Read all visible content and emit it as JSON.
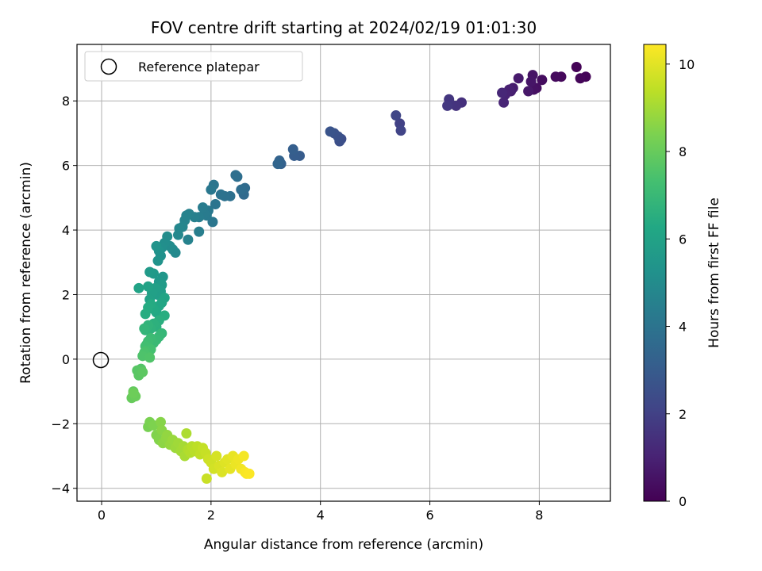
{
  "chart_data": {
    "type": "scatter",
    "title": "FOV centre drift starting at 2024/02/19 01:01:30",
    "xlabel": "Angular distance from reference (arcmin)",
    "ylabel": "Rotation from reference (arcmin)",
    "xlim": [
      -0.45,
      9.3
    ],
    "ylim": [
      -4.4,
      9.75
    ],
    "x_ticks": [
      0,
      2,
      4,
      6,
      8
    ],
    "y_ticks": [
      -4,
      -2,
      0,
      2,
      4,
      6,
      8
    ],
    "x_tick_labels": [
      "0",
      "2",
      "4",
      "6",
      "8"
    ],
    "y_tick_labels": [
      "−4",
      "−2",
      "0",
      "2",
      "4",
      "6",
      "8"
    ],
    "grid": true,
    "legend": {
      "position": "top-left",
      "entries": [
        "Reference platepar"
      ]
    },
    "reference_point": {
      "label": "Reference platepar",
      "x": 0,
      "y": 0,
      "marker": "open-circle"
    },
    "colorbar": {
      "label": "Hours from first FF file",
      "range": [
        0,
        10.45
      ],
      "ticks": [
        0,
        2,
        4,
        6,
        8,
        10
      ],
      "tick_labels": [
        "0",
        "2",
        "4",
        "6",
        "8",
        "10"
      ],
      "colormap": "viridis"
    },
    "series": [
      {
        "color_variable": "hours",
        "points": [
          [
            8.68,
            9.05,
            0.05
          ],
          [
            8.85,
            8.75,
            0.1
          ],
          [
            8.75,
            8.7,
            0.15
          ],
          [
            8.4,
            8.75,
            0.22
          ],
          [
            8.3,
            8.75,
            0.28
          ],
          [
            8.05,
            8.65,
            0.35
          ],
          [
            7.95,
            8.4,
            0.42
          ],
          [
            7.9,
            8.35,
            0.48
          ],
          [
            7.88,
            8.8,
            0.55
          ],
          [
            7.85,
            8.6,
            0.6
          ],
          [
            7.8,
            8.3,
            0.68
          ],
          [
            7.62,
            8.7,
            0.75
          ],
          [
            7.52,
            8.4,
            0.82
          ],
          [
            7.48,
            8.3,
            0.9
          ],
          [
            7.45,
            8.35,
            0.96
          ],
          [
            7.38,
            8.2,
            1.02
          ],
          [
            7.35,
            7.95,
            1.08
          ],
          [
            7.32,
            8.25,
            1.15
          ],
          [
            6.58,
            7.95,
            1.45
          ],
          [
            6.48,
            7.85,
            1.52
          ],
          [
            6.38,
            7.9,
            1.58
          ],
          [
            6.35,
            8.05,
            1.64
          ],
          [
            6.32,
            7.85,
            1.7
          ],
          [
            5.45,
            7.3,
            2.0
          ],
          [
            5.47,
            7.08,
            2.08
          ],
          [
            5.38,
            7.55,
            2.15
          ],
          [
            4.38,
            6.82,
            2.45
          ],
          [
            4.35,
            6.75,
            2.52
          ],
          [
            4.32,
            6.9,
            2.58
          ],
          [
            4.25,
            7.0,
            2.64
          ],
          [
            4.18,
            7.05,
            2.7
          ],
          [
            3.62,
            6.3,
            3.0
          ],
          [
            3.52,
            6.3,
            3.07
          ],
          [
            3.5,
            6.5,
            3.14
          ],
          [
            3.28,
            6.05,
            3.22
          ],
          [
            3.25,
            6.15,
            3.3
          ],
          [
            3.22,
            6.05,
            3.38
          ],
          [
            2.6,
            5.1,
            3.6
          ],
          [
            2.62,
            5.3,
            3.65
          ],
          [
            2.55,
            5.25,
            3.7
          ],
          [
            2.48,
            5.65,
            3.75
          ],
          [
            2.45,
            5.7,
            3.8
          ],
          [
            2.35,
            5.05,
            3.85
          ],
          [
            2.25,
            5.05,
            3.9
          ],
          [
            2.18,
            5.1,
            3.95
          ],
          [
            2.08,
            4.8,
            4.0
          ],
          [
            2.05,
            5.4,
            4.05
          ],
          [
            2.03,
            4.25,
            4.1
          ],
          [
            2.0,
            5.25,
            4.15
          ],
          [
            1.95,
            4.6,
            4.2
          ],
          [
            1.92,
            4.45,
            4.25
          ],
          [
            1.88,
            4.5,
            4.3
          ],
          [
            1.85,
            4.7,
            4.35
          ],
          [
            1.78,
            4.4,
            4.4
          ],
          [
            1.78,
            3.95,
            4.45
          ],
          [
            1.7,
            4.4,
            4.5
          ],
          [
            1.6,
            4.5,
            4.55
          ],
          [
            1.58,
            3.7,
            4.6
          ],
          [
            1.55,
            4.45,
            4.65
          ],
          [
            1.52,
            4.3,
            4.7
          ],
          [
            1.48,
            4.1,
            4.75
          ],
          [
            1.42,
            4.05,
            4.8
          ],
          [
            1.4,
            3.85,
            4.85
          ],
          [
            1.35,
            3.3,
            4.9
          ],
          [
            1.3,
            3.4,
            4.95
          ],
          [
            1.25,
            3.5,
            5.0
          ],
          [
            1.2,
            3.8,
            5.05
          ],
          [
            1.15,
            3.6,
            5.1
          ],
          [
            1.1,
            3.45,
            5.15
          ],
          [
            1.08,
            3.2,
            5.2
          ],
          [
            1.05,
            3.35,
            5.25
          ],
          [
            1.03,
            3.05,
            5.3
          ],
          [
            1.0,
            3.5,
            5.35
          ],
          [
            1.12,
            2.55,
            5.5
          ],
          [
            1.05,
            2.4,
            5.55
          ],
          [
            0.95,
            2.65,
            5.6
          ],
          [
            0.88,
            2.7,
            5.65
          ],
          [
            1.1,
            2.3,
            5.7
          ],
          [
            1.08,
            2.1,
            5.75
          ],
          [
            1.02,
            2.0,
            5.8
          ],
          [
            0.98,
            2.2,
            5.85
          ],
          [
            0.92,
            2.05,
            5.9
          ],
          [
            0.88,
            1.85,
            5.95
          ],
          [
            0.85,
            2.25,
            6.0
          ],
          [
            0.68,
            2.2,
            6.05
          ],
          [
            1.15,
            1.9,
            6.1
          ],
          [
            1.1,
            1.75,
            6.15
          ],
          [
            1.05,
            1.65,
            6.2
          ],
          [
            1.0,
            1.45,
            6.25
          ],
          [
            0.95,
            1.55,
            6.3
          ],
          [
            0.9,
            1.7,
            6.35
          ],
          [
            0.85,
            1.6,
            6.4
          ],
          [
            0.8,
            1.4,
            6.45
          ],
          [
            1.15,
            1.35,
            6.5
          ],
          [
            1.05,
            1.2,
            6.55
          ],
          [
            1.0,
            1.0,
            6.6
          ],
          [
            0.95,
            1.1,
            6.65
          ],
          [
            0.9,
            0.95,
            6.7
          ],
          [
            0.85,
            1.05,
            6.75
          ],
          [
            0.8,
            0.9,
            6.8
          ],
          [
            0.78,
            0.95,
            6.85
          ],
          [
            1.1,
            0.8,
            6.9
          ],
          [
            1.05,
            0.7,
            6.95
          ],
          [
            1.0,
            0.6,
            7.0
          ],
          [
            0.95,
            0.5,
            7.05
          ],
          [
            0.9,
            0.65,
            7.1
          ],
          [
            0.85,
            0.55,
            7.15
          ],
          [
            0.82,
            0.45,
            7.2
          ],
          [
            0.8,
            0.4,
            7.25
          ],
          [
            0.9,
            0.3,
            7.3
          ],
          [
            0.85,
            0.15,
            7.35
          ],
          [
            0.8,
            0.25,
            7.4
          ],
          [
            0.78,
            0.2,
            7.45
          ],
          [
            0.75,
            0.1,
            7.5
          ],
          [
            0.88,
            0.05,
            7.55
          ],
          [
            0.72,
            -0.3,
            7.6
          ],
          [
            0.7,
            -0.4,
            7.65
          ],
          [
            0.65,
            -0.35,
            7.7
          ],
          [
            0.68,
            -0.5,
            7.75
          ],
          [
            0.75,
            -0.4,
            7.8
          ],
          [
            0.58,
            -1.0,
            7.9
          ],
          [
            0.6,
            -1.1,
            7.95
          ],
          [
            0.55,
            -1.2,
            8.0
          ],
          [
            0.62,
            -1.15,
            8.05
          ],
          [
            0.58,
            -1.05,
            8.1
          ],
          [
            0.85,
            -2.1,
            8.3
          ],
          [
            0.88,
            -1.95,
            8.35
          ],
          [
            0.95,
            -2.05,
            8.4
          ],
          [
            1.0,
            -2.35,
            8.45
          ],
          [
            1.05,
            -2.5,
            8.5
          ],
          [
            1.08,
            -1.95,
            8.55
          ],
          [
            1.1,
            -2.2,
            8.6
          ],
          [
            1.12,
            -2.6,
            8.65
          ],
          [
            1.18,
            -2.45,
            8.7
          ],
          [
            1.2,
            -2.35,
            8.75
          ],
          [
            1.25,
            -2.65,
            8.8
          ],
          [
            1.3,
            -2.5,
            8.85
          ],
          [
            1.35,
            -2.75,
            8.9
          ],
          [
            1.4,
            -2.6,
            8.95
          ],
          [
            1.45,
            -2.85,
            9.0
          ],
          [
            1.5,
            -2.7,
            9.05
          ],
          [
            1.52,
            -3.0,
            9.1
          ],
          [
            1.55,
            -2.3,
            9.15
          ],
          [
            1.58,
            -2.8,
            9.2
          ],
          [
            1.62,
            -2.9,
            9.25
          ],
          [
            1.65,
            -2.7,
            9.3
          ],
          [
            1.7,
            -2.85,
            9.35
          ],
          [
            1.75,
            -2.7,
            9.4
          ],
          [
            1.8,
            -2.95,
            9.45
          ],
          [
            1.85,
            -2.75,
            9.5
          ],
          [
            1.9,
            -2.9,
            9.55
          ],
          [
            1.92,
            -3.7,
            9.6
          ],
          [
            1.95,
            -3.1,
            9.65
          ],
          [
            2.0,
            -3.2,
            9.7
          ],
          [
            2.05,
            -3.4,
            9.75
          ],
          [
            2.1,
            -3.0,
            9.8
          ],
          [
            2.15,
            -3.3,
            9.85
          ],
          [
            2.2,
            -3.5,
            9.9
          ],
          [
            2.25,
            -3.2,
            9.95
          ],
          [
            2.3,
            -3.1,
            10.0
          ],
          [
            2.35,
            -3.4,
            10.05
          ],
          [
            2.4,
            -3.0,
            10.1
          ],
          [
            2.45,
            -3.25,
            10.15
          ],
          [
            2.5,
            -3.1,
            10.2
          ],
          [
            2.55,
            -3.4,
            10.25
          ],
          [
            2.6,
            -3.0,
            10.3
          ],
          [
            2.62,
            -3.5,
            10.35
          ],
          [
            2.65,
            -3.55,
            10.38
          ],
          [
            2.7,
            -3.55,
            10.42
          ]
        ]
      }
    ]
  }
}
